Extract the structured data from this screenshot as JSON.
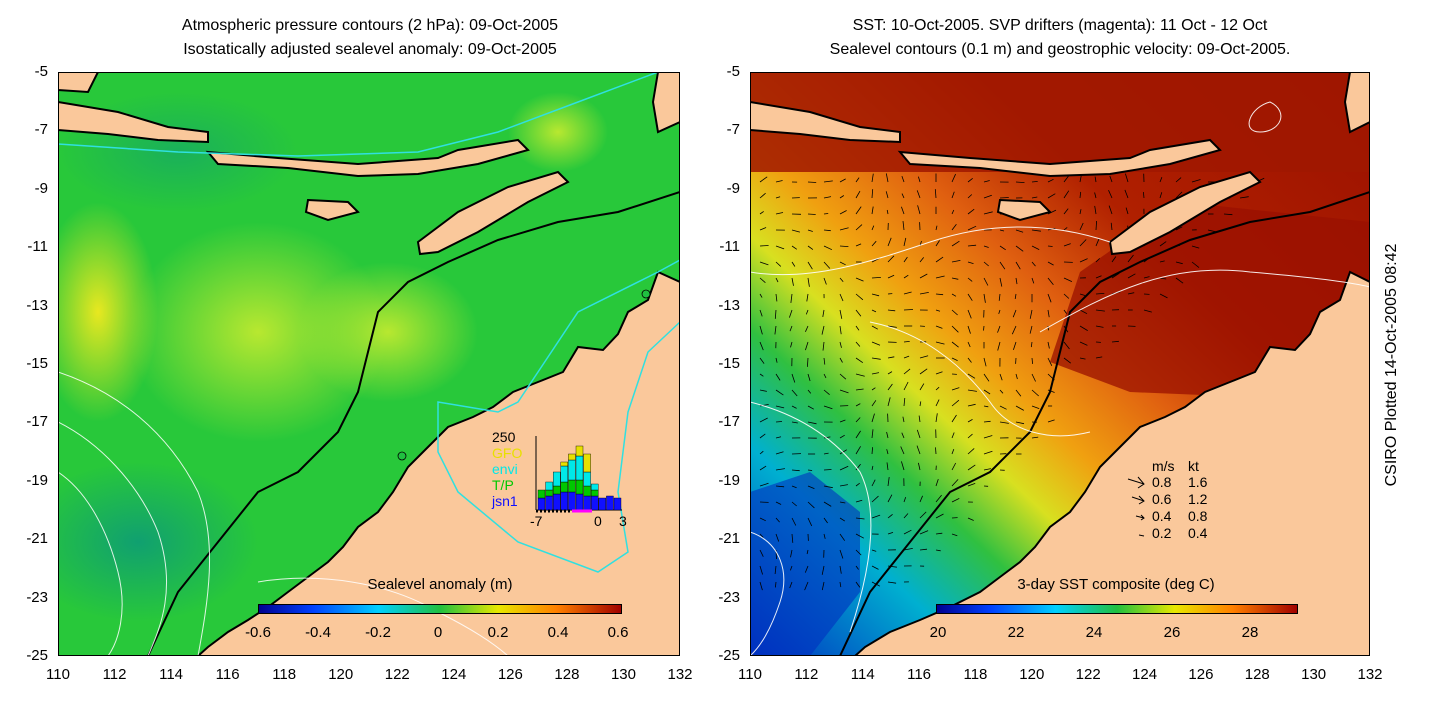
{
  "left_panel": {
    "title_line1": "Atmospheric pressure contours (2 hPa): 09-Oct-2005",
    "title_line2": "Isostatically adjusted sealevel anomaly: 09-Oct-2005",
    "colorbar_title": "Sealevel anomaly (m)",
    "colorbar_ticks": [
      "-0.6",
      "-0.4",
      "-0.2",
      "0",
      "0.2",
      "0.4",
      "0.6"
    ],
    "inset": {
      "top_value": "250",
      "labels": [
        "GFO",
        "envi",
        "T/P",
        "jsn1"
      ],
      "label_colors": [
        "#e8e000",
        "#00e8e8",
        "#00c800",
        "#1010ff"
      ],
      "xticks": [
        "-7",
        "0",
        "3"
      ]
    }
  },
  "right_panel": {
    "title_line1": "SST: 10-Oct-2005. SVP drifters (magenta): 11 Oct - 12 Oct",
    "title_line2": "Sealevel contours (0.1 m) and geostrophic velocity: 09-Oct-2005.",
    "colorbar_title": "3-day SST composite (deg C)",
    "colorbar_ticks": [
      "20",
      "22",
      "24",
      "26",
      "28"
    ],
    "velocity_legend": {
      "header_ms": "m/s",
      "header_kt": "kt",
      "rows": [
        {
          "ms": "0.8",
          "kt": "1.6"
        },
        {
          "ms": "0.6",
          "kt": "1.2"
        },
        {
          "ms": "0.4",
          "kt": "0.8"
        },
        {
          "ms": "0.2",
          "kt": "0.4"
        }
      ]
    }
  },
  "axes": {
    "y_ticks": [
      "-5",
      "-7",
      "-9",
      "-11",
      "-13",
      "-15",
      "-17",
      "-19",
      "-21",
      "-23",
      "-25"
    ],
    "x_ticks": [
      "110",
      "112",
      "114",
      "116",
      "118",
      "120",
      "122",
      "124",
      "126",
      "128",
      "130",
      "132"
    ]
  },
  "credit": "CSIRO Plotted 14-Oct-2005 08:42",
  "colors": {
    "land": "#fac89b",
    "coastline": "#000000",
    "sla_field": "#20c040",
    "sst_warm": "#a01000",
    "sst_cool": "#0030c0"
  }
}
